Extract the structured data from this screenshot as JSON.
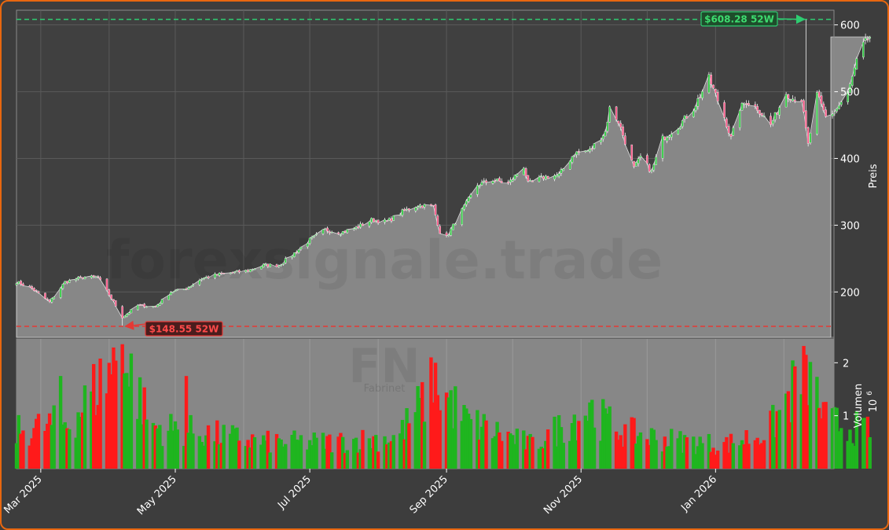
{
  "chart_data": {
    "type": "candlestick",
    "symbol": "FN",
    "watermark": "forexsignale.trade",
    "watermark_sub": "Fabrinet",
    "price_axis_label": "Preis",
    "volume_axis_label": "Volumen",
    "volume_axis_exponent": "10",
    "volume_axis_exponent_power": "6",
    "price_ticks": [
      "200",
      "300",
      "400",
      "500",
      "600"
    ],
    "volume_ticks": [
      "1",
      "2"
    ],
    "date_ticks": [
      "Mar 2025",
      "May 2025",
      "Jul 2025",
      "Sep 2025",
      "Nov 2025",
      "Jan 2026"
    ],
    "price_ylim": [
      132,
      622
    ],
    "volume_ylim": [
      0,
      2.45
    ],
    "start_date": "2025-02-18",
    "end_date": "2026-02-18",
    "high_52w": {
      "value": 608.28,
      "label": "$608.28 52W",
      "date": "2026-02-11"
    },
    "low_52w": {
      "value": 148.55,
      "label": "$148.55 52W",
      "date": "2025-04-07"
    },
    "price_waypoints": [
      [
        "2025-02-18",
        215
      ],
      [
        "2025-02-25",
        205
      ],
      [
        "2025-03-05",
        185
      ],
      [
        "2025-03-12",
        215
      ],
      [
        "2025-03-20",
        222
      ],
      [
        "2025-03-27",
        222
      ],
      [
        "2025-04-03",
        185
      ],
      [
        "2025-04-07",
        162
      ],
      [
        "2025-04-14",
        180
      ],
      [
        "2025-04-22",
        178
      ],
      [
        "2025-04-29",
        200
      ],
      [
        "2025-05-06",
        205
      ],
      [
        "2025-05-13",
        220
      ],
      [
        "2025-05-20",
        226
      ],
      [
        "2025-06-03",
        232
      ],
      [
        "2025-06-10",
        240
      ],
      [
        "2025-06-17",
        240
      ],
      [
        "2025-06-24",
        258
      ],
      [
        "2025-07-01",
        278
      ],
      [
        "2025-07-08",
        293
      ],
      [
        "2025-07-15",
        289
      ],
      [
        "2025-07-22",
        296
      ],
      [
        "2025-07-29",
        308
      ],
      [
        "2025-08-05",
        305
      ],
      [
        "2025-08-12",
        320
      ],
      [
        "2025-08-19",
        330
      ],
      [
        "2025-08-26",
        328
      ],
      [
        "2025-08-29",
        290
      ],
      [
        "2025-09-01",
        282
      ],
      [
        "2025-09-08",
        322
      ],
      [
        "2025-09-15",
        360
      ],
      [
        "2025-09-22",
        368
      ],
      [
        "2025-09-29",
        362
      ],
      [
        "2025-10-06",
        388
      ],
      [
        "2025-10-08",
        362
      ],
      [
        "2025-10-15",
        372
      ],
      [
        "2025-10-22",
        375
      ],
      [
        "2025-10-29",
        408
      ],
      [
        "2025-11-05",
        412
      ],
      [
        "2025-11-12",
        440
      ],
      [
        "2025-11-14",
        475
      ],
      [
        "2025-11-18",
        455
      ],
      [
        "2025-11-21",
        425
      ],
      [
        "2025-11-25",
        385
      ],
      [
        "2025-11-28",
        402
      ],
      [
        "2025-12-03",
        380
      ],
      [
        "2025-12-08",
        430
      ],
      [
        "2025-12-15",
        448
      ],
      [
        "2025-12-22",
        475
      ],
      [
        "2025-12-29",
        520
      ],
      [
        "2026-01-05",
        462
      ],
      [
        "2026-01-08",
        430
      ],
      [
        "2026-01-12",
        475
      ],
      [
        "2026-01-15",
        485
      ],
      [
        "2026-01-20",
        475
      ],
      [
        "2026-01-26",
        450
      ],
      [
        "2026-02-02",
        498
      ],
      [
        "2026-02-05",
        490
      ],
      [
        "2026-02-09",
        488
      ],
      [
        "2026-02-12",
        420
      ],
      [
        "2026-02-16",
        495
      ],
      [
        "2026-02-20",
        462
      ],
      [
        "2026-02-24",
        470
      ],
      [
        "2026-03-02",
        498
      ],
      [
        "2026-03-06",
        545
      ],
      [
        "2026-03-09",
        570
      ],
      [
        "2026-03-12",
        582
      ]
    ],
    "volume_waypoints": [
      [
        "2025-02-18",
        0.7
      ],
      [
        "2025-03-15",
        0.9
      ],
      [
        "2025-04-07",
        2.2
      ],
      [
        "2025-04-20",
        0.8
      ],
      [
        "2025-05-10",
        0.7
      ],
      [
        "2025-06-10",
        0.5
      ],
      [
        "2025-07-10",
        0.5
      ],
      [
        "2025-08-10",
        0.6
      ],
      [
        "2025-08-27",
        1.6
      ],
      [
        "2025-09-10",
        0.9
      ],
      [
        "2025-10-10",
        0.45
      ],
      [
        "2025-11-04",
        1.1
      ],
      [
        "2025-11-20",
        0.7
      ],
      [
        "2025-12-10",
        0.55
      ],
      [
        "2026-01-05",
        0.45
      ],
      [
        "2026-01-25",
        0.7
      ],
      [
        "2026-02-11",
        1.9
      ],
      [
        "2026-02-20",
        0.9
      ],
      [
        "2026-03-12",
        0.7
      ]
    ],
    "volume_spikes": [
      [
        "2025-04-07",
        2.35
      ],
      [
        "2025-04-08",
        1.8
      ],
      [
        "2025-04-10",
        1.55
      ],
      [
        "2025-03-10",
        1.75
      ],
      [
        "2025-05-06",
        1.75
      ],
      [
        "2025-08-27",
        2.0
      ],
      [
        "2025-08-26",
        1.25
      ],
      [
        "2025-11-06",
        1.3
      ],
      [
        "2025-11-05",
        1.25
      ],
      [
        "2026-02-11",
        2.15
      ],
      [
        "2026-02-12",
        1.2
      ]
    ],
    "colors": {
      "up": "#1fb51f",
      "down": "#ff1a1a",
      "area": "#878787",
      "high_line": "#2ecc71",
      "low_line": "#e53935",
      "background": "#3d3d3d",
      "border": "#e8670f"
    }
  }
}
